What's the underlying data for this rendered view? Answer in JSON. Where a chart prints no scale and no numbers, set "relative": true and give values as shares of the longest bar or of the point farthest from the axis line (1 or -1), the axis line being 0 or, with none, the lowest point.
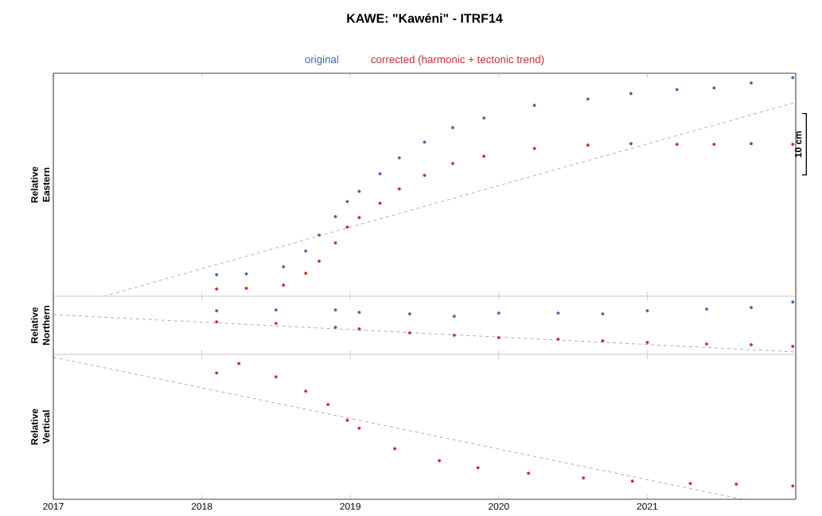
{
  "chart_data": [
    {
      "type": "scatter",
      "title": "KAWE: \"Kawéni\" - ITRF14",
      "ylabel": "Relative Eastern",
      "relative": true,
      "xlim": [
        2017,
        2022
      ],
      "xticks": [
        2017,
        2018,
        2019,
        2020,
        2021
      ],
      "tick_labels": false,
      "marker": "circle",
      "legend": "top",
      "annotations": [
        "10 cm"
      ],
      "series": [
        {
          "name": "original",
          "color": "#3a6bb0",
          "x": [
            2018.1,
            2018.3,
            2018.55,
            2018.7,
            2018.79,
            2018.9,
            2018.98,
            2019.06,
            2019.2,
            2019.33,
            2019.5,
            2019.69,
            2019.9,
            2020.24,
            2020.6,
            2020.89,
            2021.2,
            2021.45,
            2021.7,
            2021.98
          ],
          "values": [
            0.098,
            0.102,
            0.135,
            0.207,
            0.28,
            0.364,
            0.433,
            0.48,
            0.56,
            0.633,
            0.705,
            0.771,
            0.815,
            0.873,
            0.902,
            0.927,
            0.945,
            0.953,
            0.975,
            1.0
          ]
        },
        {
          "name": "corrected (harmonic + tectonic trend)",
          "color": "#c8302e",
          "x": [
            2018.1,
            2018.3,
            2018.55,
            2018.7,
            2018.79,
            2018.9,
            2018.98,
            2019.06,
            2019.2,
            2019.33,
            2019.5,
            2019.69,
            2019.9,
            2020.24,
            2020.6,
            2020.89,
            2021.2,
            2021.45,
            2021.7,
            2021.98
          ],
          "values": [
            0.033,
            0.036,
            0.051,
            0.105,
            0.16,
            0.244,
            0.316,
            0.36,
            0.425,
            0.491,
            0.553,
            0.607,
            0.64,
            0.676,
            0.691,
            0.698,
            0.695,
            0.695,
            0.698,
            0.695
          ]
        },
        {
          "type": "line",
          "line_style": "dashed",
          "marker": "none",
          "color": "#999999",
          "x": [
            2017.34,
            2022
          ],
          "values": [
            0,
            0.887
          ]
        }
      ]
    },
    {
      "type": "scatter",
      "ylabel": "Relative Northern",
      "relative": true,
      "xlim": [
        2017,
        2022
      ],
      "xticks": [
        2017,
        2018,
        2019,
        2020,
        2021
      ],
      "tick_labels": false,
      "marker": "circle",
      "series": [
        {
          "color": "#3a6bb0",
          "x": [
            2018.1,
            2018.5,
            2018.9,
            2019.06,
            2019.4,
            2019.7,
            2020.0,
            2020.4,
            2020.7,
            2021.0,
            2021.4,
            2021.7,
            2021.98
          ],
          "values": [
            0.833,
            0.848,
            0.848,
            0.803,
            0.773,
            0.727,
            0.788,
            0.788,
            0.773,
            0.833,
            0.864,
            0.894,
            1.0
          ]
        },
        {
          "color": "#c8302e",
          "x": [
            2018.1,
            2018.5,
            2018.9,
            2019.06,
            2019.4,
            2019.7,
            2020.0,
            2020.4,
            2020.7,
            2021.0,
            2021.4,
            2021.7,
            2021.98
          ],
          "values": [
            0.621,
            0.591,
            0.515,
            0.485,
            0.409,
            0.364,
            0.318,
            0.288,
            0.258,
            0.227,
            0.197,
            0.182,
            0.152
          ]
        },
        {
          "type": "line",
          "line_style": "dashed",
          "marker": "none",
          "color": "#999999",
          "x": [
            2017,
            2022
          ],
          "values": [
            0.758,
            0.045
          ]
        }
      ]
    },
    {
      "type": "scatter",
      "ylabel": "Relative Vertical",
      "relative": true,
      "xlim": [
        2017,
        2022
      ],
      "xticks": [
        2017,
        2018,
        2019,
        2020,
        2021
      ],
      "tick_labels": "x",
      "marker": "circle",
      "series": [
        {
          "color": "#c8302e",
          "x": [
            2018.1,
            2018.25,
            2018.5,
            2018.7,
            2018.85,
            2018.98,
            2019.06,
            2019.3,
            2019.6,
            2019.86,
            2020.2,
            2020.57,
            2020.9,
            2021.29,
            2021.6,
            2021.98
          ],
          "values": [
            0.889,
            0.956,
            0.861,
            0.761,
            0.667,
            0.556,
            0.5,
            0.356,
            0.272,
            0.222,
            0.183,
            0.15,
            0.128,
            0.111,
            0.106,
            0.094
          ]
        },
        {
          "type": "line",
          "line_style": "dashed",
          "marker": "none",
          "color": "#999999",
          "x": [
            2017,
            2021.64
          ],
          "values": [
            1.0,
            0.0
          ]
        }
      ]
    }
  ]
}
